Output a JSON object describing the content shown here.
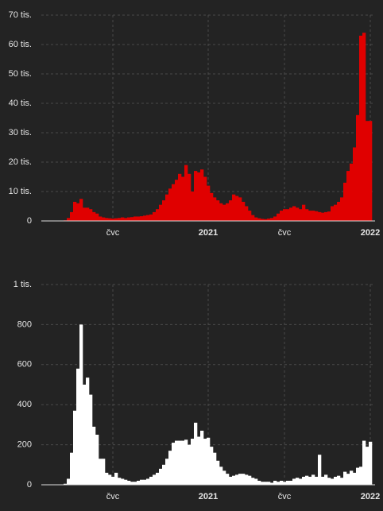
{
  "chart_data": [
    {
      "type": "bar",
      "color": "#e00000",
      "grid": true,
      "categories": [
        null,
        null,
        null,
        null,
        null,
        null,
        null,
        null,
        null,
        null,
        null,
        null,
        null,
        null,
        null,
        null,
        null,
        null,
        null,
        null,
        null,
        null,
        "čvc",
        null,
        null,
        null,
        null,
        null,
        null,
        null,
        null,
        null,
        null,
        null,
        null,
        null,
        null,
        null,
        null,
        null,
        null,
        null,
        null,
        null,
        null,
        null,
        null,
        null,
        null,
        null,
        null,
        null,
        "2021",
        null,
        null,
        null,
        null,
        null,
        null,
        null,
        null,
        null,
        null,
        null,
        null,
        null,
        null,
        null,
        null,
        null,
        null,
        null,
        null,
        null,
        null,
        null,
        "čvc",
        null,
        null,
        null,
        null,
        null,
        null,
        null,
        null,
        null,
        null,
        null,
        null,
        null,
        null,
        null,
        null,
        null,
        null,
        null,
        null,
        null,
        null,
        null,
        null,
        null,
        null,
        "2022"
      ],
      "values": [
        0,
        0,
        0,
        0,
        0,
        0,
        0,
        200,
        1000,
        3000,
        6500,
        6000,
        7500,
        4500,
        4500,
        4000,
        3000,
        2500,
        1500,
        1200,
        1000,
        900,
        800,
        900,
        1000,
        1200,
        1000,
        1200,
        1300,
        1500,
        1500,
        1600,
        1800,
        2000,
        2200,
        3000,
        4000,
        5500,
        7000,
        9000,
        11000,
        12500,
        14000,
        16000,
        15000,
        19000,
        16000,
        10000,
        17000,
        16500,
        17500,
        15000,
        12000,
        9500,
        8000,
        7000,
        6000,
        5500,
        6000,
        7000,
        9000,
        8500,
        8000,
        6500,
        5000,
        3500,
        2000,
        1200,
        900,
        700,
        600,
        800,
        1000,
        1500,
        2500,
        3500,
        4000,
        4000,
        4500,
        5000,
        4500,
        4000,
        5500,
        4000,
        3500,
        3500,
        3300,
        3000,
        2800,
        3000,
        3200,
        5000,
        5500,
        6500,
        8000,
        13000,
        17000,
        19500,
        25000,
        36000,
        63000,
        64000,
        34000,
        34000
      ],
      "ylim": [
        0,
        70000
      ],
      "yticks": [
        0,
        {
          "value": 10000,
          "label": "10 tis."
        },
        {
          "value": 20000,
          "label": "20 tis."
        },
        {
          "value": 30000,
          "label": "30 tis."
        },
        {
          "value": 40000,
          "label": "40 tis."
        },
        {
          "value": 50000,
          "label": "50 tis."
        },
        {
          "value": 60000,
          "label": "60 tis."
        },
        {
          "value": 70000,
          "label": "70 tis."
        }
      ]
    },
    {
      "type": "bar",
      "color": "#ffffff",
      "grid": true,
      "categories": [
        null,
        null,
        null,
        null,
        null,
        null,
        null,
        null,
        null,
        null,
        null,
        null,
        null,
        null,
        null,
        null,
        null,
        null,
        null,
        null,
        null,
        null,
        "čvc",
        null,
        null,
        null,
        null,
        null,
        null,
        null,
        null,
        null,
        null,
        null,
        null,
        null,
        null,
        null,
        null,
        null,
        null,
        null,
        null,
        null,
        null,
        null,
        null,
        null,
        null,
        null,
        null,
        null,
        "2021",
        null,
        null,
        null,
        null,
        null,
        null,
        null,
        null,
        null,
        null,
        null,
        null,
        null,
        null,
        null,
        null,
        null,
        null,
        null,
        null,
        null,
        null,
        null,
        "čvc",
        null,
        null,
        null,
        null,
        null,
        null,
        null,
        null,
        null,
        null,
        null,
        null,
        null,
        null,
        null,
        null,
        null,
        null,
        null,
        null,
        null,
        null,
        null,
        null,
        null,
        null,
        "2022"
      ],
      "values": [
        0,
        0,
        0,
        0,
        0,
        0,
        0,
        5,
        30,
        160,
        370,
        580,
        800,
        500,
        535,
        450,
        290,
        250,
        130,
        130,
        60,
        50,
        40,
        60,
        35,
        30,
        25,
        20,
        15,
        15,
        20,
        25,
        25,
        30,
        40,
        50,
        60,
        80,
        100,
        130,
        170,
        210,
        220,
        220,
        220,
        225,
        200,
        230,
        310,
        240,
        270,
        230,
        235,
        190,
        160,
        120,
        90,
        70,
        55,
        40,
        45,
        50,
        55,
        55,
        50,
        45,
        35,
        30,
        20,
        15,
        15,
        15,
        10,
        20,
        15,
        20,
        15,
        20,
        20,
        30,
        35,
        30,
        40,
        45,
        40,
        50,
        40,
        150,
        40,
        50,
        35,
        30,
        40,
        45,
        35,
        65,
        55,
        70,
        60,
        85,
        90,
        220,
        190,
        215
      ],
      "ylim": [
        0,
        1000
      ],
      "yticks": [
        0,
        200,
        400,
        600,
        800,
        {
          "value": 1000,
          "label": "1 tis."
        }
      ]
    }
  ]
}
